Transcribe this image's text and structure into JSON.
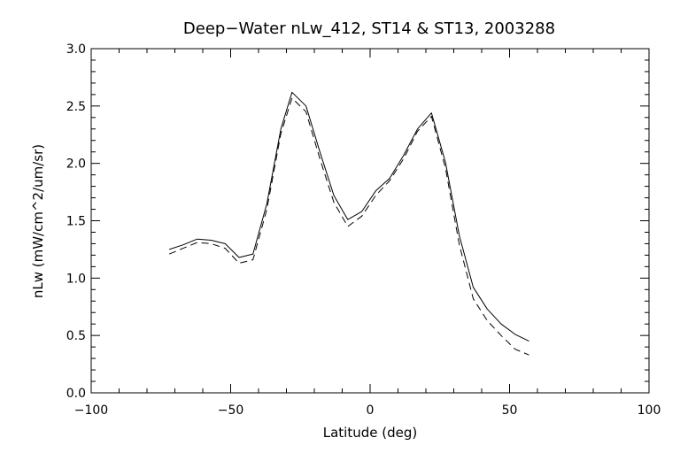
{
  "chart_data": {
    "type": "line",
    "title": "Deep−Water nLw_412, ST14 & ST13, 2003288",
    "xlabel": "Latitude (deg)",
    "ylabel": "nLw (mW/cm^2/um/sr)",
    "xlim": [
      -100,
      100
    ],
    "ylim": [
      0.0,
      3.0
    ],
    "x_ticks": [
      -100,
      -50,
      0,
      50,
      100
    ],
    "x_tick_labels": [
      "−100",
      "−50",
      "0",
      "50",
      "100"
    ],
    "y_ticks": [
      0.0,
      0.5,
      1.0,
      1.5,
      2.0,
      2.5,
      3.0
    ],
    "y_tick_labels": [
      "0.0",
      "0.5",
      "1.0",
      "1.5",
      "2.0",
      "2.5",
      "3.0"
    ],
    "grid": false,
    "series": [
      {
        "style": "solid",
        "color": "#000000",
        "x": [
          -72,
          -67,
          -62,
          -57,
          -52,
          -47,
          -42,
          -37,
          -32,
          -28,
          -23,
          -18,
          -13,
          -8,
          -3,
          2,
          7,
          12,
          17,
          22,
          27,
          32,
          37,
          42,
          47,
          52,
          57
        ],
        "y": [
          1.25,
          1.29,
          1.34,
          1.33,
          1.3,
          1.18,
          1.21,
          1.65,
          2.3,
          2.62,
          2.5,
          2.1,
          1.72,
          1.51,
          1.58,
          1.76,
          1.87,
          2.07,
          2.3,
          2.44,
          2.01,
          1.37,
          0.92,
          0.73,
          0.6,
          0.51,
          0.45
        ]
      },
      {
        "style": "dashed",
        "color": "#000000",
        "x": [
          -72,
          -67,
          -62,
          -57,
          -52,
          -47,
          -42,
          -37,
          -32,
          -28,
          -23,
          -18,
          -13,
          -8,
          -3,
          2,
          7,
          12,
          17,
          22,
          27,
          32,
          37,
          42,
          47,
          52,
          57
        ],
        "y": [
          1.21,
          1.26,
          1.31,
          1.3,
          1.26,
          1.13,
          1.16,
          1.6,
          2.26,
          2.57,
          2.45,
          2.04,
          1.66,
          1.45,
          1.54,
          1.72,
          1.85,
          2.04,
          2.28,
          2.41,
          1.96,
          1.29,
          0.82,
          0.63,
          0.5,
          0.38,
          0.33
        ]
      }
    ]
  }
}
